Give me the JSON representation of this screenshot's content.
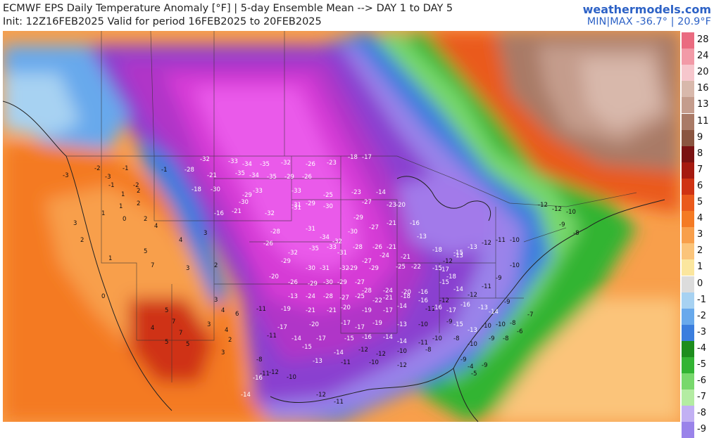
{
  "header": {
    "title": "ECMWF EPS Daily Temperature Anomaly [°F] | 5-day Ensemble Mean --> DAY 1 to DAY 5",
    "subtitle": "Init: 12Z16FEB2025 Valid for period 16FEB2025 to 20FEB2025",
    "brand": "weathermodels.com",
    "minmax": "MIN|MAX -36.7° | 20.9°F"
  },
  "scale": {
    "labels": [
      "28",
      "24",
      "20",
      "16",
      "13",
      "11",
      "9",
      "8",
      "7",
      "6",
      "5",
      "4",
      "3",
      "2",
      "1",
      "0",
      "-1",
      "-2",
      "-3",
      "-4",
      "-5",
      "-6",
      "-7",
      "-8",
      "-9"
    ],
    "colors": [
      "#ea6b80",
      "#f29aa7",
      "#f6c6cc",
      "#d8b8ab",
      "#c49c8c",
      "#a97a66",
      "#8a5540",
      "#7a1212",
      "#a51a10",
      "#cf3313",
      "#ea5a1c",
      "#f47a24",
      "#f89f4b",
      "#fbc47a",
      "#fbe69e",
      "#dcdcdc",
      "#a7d2f2",
      "#68a9ec",
      "#3b7ede",
      "#1d8d1d",
      "#33b433",
      "#78d86c",
      "#b4eca2",
      "#c2b0f3",
      "#9a83ea"
    ]
  },
  "map": {
    "anomaly_labels": [
      {
        "t": "-32",
        "c": "d"
      },
      {
        "t": "-33",
        "c": "d"
      },
      {
        "t": "-34",
        "c": "d"
      },
      {
        "t": "-35",
        "c": "d"
      },
      {
        "t": "-32",
        "c": "d"
      },
      {
        "t": "-26",
        "c": "d"
      },
      {
        "t": "-23",
        "c": "d"
      },
      {
        "t": "-18",
        "c": "d"
      },
      {
        "t": "-17",
        "c": "d"
      },
      {
        "t": "-28",
        "c": "d"
      },
      {
        "t": "-21",
        "c": "d"
      },
      {
        "t": "-35",
        "c": "d"
      },
      {
        "t": "-34",
        "c": "d"
      },
      {
        "t": "-35",
        "c": "d"
      },
      {
        "t": "-29",
        "c": "d"
      },
      {
        "t": "-26",
        "c": "d"
      },
      {
        "t": "-18",
        "c": "d"
      },
      {
        "t": "-30",
        "c": "d"
      },
      {
        "t": "-33",
        "c": "d"
      },
      {
        "t": "-30",
        "c": "d"
      },
      {
        "t": "-33",
        "c": "d"
      },
      {
        "t": "-29",
        "c": "d"
      },
      {
        "t": "-29",
        "c": "d"
      },
      {
        "t": "-31",
        "c": "d"
      },
      {
        "t": "-25",
        "c": "d"
      },
      {
        "t": "-23",
        "c": "d"
      },
      {
        "t": "-14",
        "c": "d"
      },
      {
        "t": "-27",
        "c": "d"
      },
      {
        "t": "-23",
        "c": "d"
      },
      {
        "t": "-20",
        "c": "d"
      },
      {
        "t": "-21",
        "c": "d"
      },
      {
        "t": "-16",
        "c": "d"
      },
      {
        "t": "-32",
        "c": "d"
      },
      {
        "t": "-31",
        "c": "d"
      },
      {
        "t": "-30",
        "c": "d"
      },
      {
        "t": "-29",
        "c": "d"
      },
      {
        "t": "-28",
        "c": "d"
      },
      {
        "t": "-31",
        "c": "d"
      },
      {
        "t": "-30",
        "c": "d"
      },
      {
        "t": "-27",
        "c": "d"
      },
      {
        "t": "-21",
        "c": "d"
      },
      {
        "t": "-16",
        "c": "d"
      },
      {
        "t": "-26",
        "c": "d"
      },
      {
        "t": "-32",
        "c": "d"
      },
      {
        "t": "-34",
        "c": "d"
      },
      {
        "t": "-32",
        "c": "d"
      },
      {
        "t": "-28",
        "c": "d"
      },
      {
        "t": "-26",
        "c": "d"
      },
      {
        "t": "-21",
        "c": "d"
      },
      {
        "t": "-13",
        "c": "d"
      },
      {
        "t": "-35",
        "c": "d"
      },
      {
        "t": "-33",
        "c": "d"
      },
      {
        "t": "-31",
        "c": "d"
      },
      {
        "t": "-29",
        "c": "d"
      },
      {
        "t": "-27",
        "c": "d"
      },
      {
        "t": "-24",
        "c": "d"
      },
      {
        "t": "-21",
        "c": "d"
      },
      {
        "t": "-18",
        "c": "d"
      },
      {
        "t": "-15",
        "c": "d"
      },
      {
        "t": "-29",
        "c": "d"
      },
      {
        "t": "-30",
        "c": "d"
      },
      {
        "t": "-31",
        "c": "d"
      },
      {
        "t": "-32",
        "c": "d"
      },
      {
        "t": "-29",
        "c": "d"
      },
      {
        "t": "-25",
        "c": "d"
      },
      {
        "t": "-22",
        "c": "d"
      },
      {
        "t": "-17",
        "c": "d"
      },
      {
        "t": "-20",
        "c": "d"
      },
      {
        "t": "-26",
        "c": "d"
      },
      {
        "t": "-29",
        "c": "d"
      },
      {
        "t": "-30",
        "c": "d"
      },
      {
        "t": "-29",
        "c": "d"
      },
      {
        "t": "-27",
        "c": "d"
      },
      {
        "t": "-28",
        "c": "d"
      },
      {
        "t": "-24",
        "c": "d"
      },
      {
        "t": "-20",
        "c": "d"
      },
      {
        "t": "-16",
        "c": "d"
      },
      {
        "t": "-13",
        "c": "d"
      },
      {
        "t": "-24",
        "c": "d"
      },
      {
        "t": "-28",
        "c": "d"
      },
      {
        "t": "-27",
        "c": "d"
      },
      {
        "t": "-25",
        "c": "d"
      },
      {
        "t": "-22",
        "c": "d"
      },
      {
        "t": "-21",
        "c": "d"
      },
      {
        "t": "-18",
        "c": "d"
      },
      {
        "t": "-16",
        "c": "d"
      },
      {
        "t": "-12",
        "c": "d"
      },
      {
        "t": "-11",
        "c": "d"
      },
      {
        "t": "-19",
        "c": "d"
      },
      {
        "t": "-21",
        "c": "d"
      },
      {
        "t": "-21",
        "c": "d"
      },
      {
        "t": "-20",
        "c": "d"
      },
      {
        "t": "-19",
        "c": "d"
      },
      {
        "t": "-17",
        "c": "d"
      },
      {
        "t": "-14",
        "c": "d"
      },
      {
        "t": "-11",
        "c": "d"
      },
      {
        "t": "-17",
        "c": "d"
      },
      {
        "t": "-20",
        "c": "d"
      },
      {
        "t": "-17",
        "c": "d"
      },
      {
        "t": "-17",
        "c": "d"
      },
      {
        "t": "-19",
        "c": "d"
      },
      {
        "t": "-13",
        "c": "d"
      },
      {
        "t": "-10",
        "c": "d"
      },
      {
        "t": "-9",
        "c": "d"
      },
      {
        "t": "-11",
        "c": "d"
      },
      {
        "t": "-14",
        "c": "d"
      },
      {
        "t": "-17",
        "c": "d"
      },
      {
        "t": "-15",
        "c": "d"
      },
      {
        "t": "-16",
        "c": "d"
      },
      {
        "t": "-14",
        "c": "d"
      },
      {
        "t": "-14",
        "c": "d"
      },
      {
        "t": "-11",
        "c": "d"
      },
      {
        "t": "-10",
        "c": "d"
      },
      {
        "t": "-8",
        "c": "d"
      },
      {
        "t": "-15",
        "c": "d"
      },
      {
        "t": "-14",
        "c": "d"
      },
      {
        "t": "-12",
        "c": "d"
      },
      {
        "t": "-12",
        "c": "d"
      },
      {
        "t": "-10",
        "c": "d"
      },
      {
        "t": "-8",
        "c": "d"
      },
      {
        "t": "-13",
        "c": "d"
      },
      {
        "t": "-11",
        "c": "d"
      },
      {
        "t": "-10",
        "c": "d"
      },
      {
        "t": "-12",
        "c": "d"
      },
      {
        "t": "-4",
        "c": "d"
      },
      {
        "t": "-15",
        "c": "d"
      },
      {
        "t": "-12",
        "c": "d"
      },
      {
        "t": "-13",
        "c": "d"
      },
      {
        "t": "-13",
        "c": "d"
      },
      {
        "t": "-12",
        "c": "d"
      },
      {
        "t": "-11",
        "c": "d"
      },
      {
        "t": "-10",
        "c": "d"
      },
      {
        "t": "-15",
        "c": "d"
      },
      {
        "t": "-18",
        "c": "d"
      },
      {
        "t": "-14",
        "c": "d"
      },
      {
        "t": "-12",
        "c": "d"
      },
      {
        "t": "-11",
        "c": "d"
      },
      {
        "t": "-9",
        "c": "d"
      },
      {
        "t": "-10",
        "c": "d"
      },
      {
        "t": "-16",
        "c": "d"
      },
      {
        "t": "-17",
        "c": "d"
      },
      {
        "t": "-16",
        "c": "d"
      },
      {
        "t": "-13",
        "c": "d"
      },
      {
        "t": "-14",
        "c": "d"
      },
      {
        "t": "-9",
        "c": "d"
      },
      {
        "t": "-15",
        "c": "d"
      },
      {
        "t": "-13",
        "c": "d"
      },
      {
        "t": "-10",
        "c": "d"
      },
      {
        "t": "-10",
        "c": "d"
      },
      {
        "t": "-8",
        "c": "d"
      },
      {
        "t": "-7",
        "c": "d"
      },
      {
        "t": "-10",
        "c": "d"
      },
      {
        "t": "-9",
        "c": "d"
      },
      {
        "t": "-8",
        "c": "d"
      },
      {
        "t": "-6",
        "c": "d"
      },
      {
        "t": "-12",
        "c": "d"
      },
      {
        "t": "-12",
        "c": "d"
      },
      {
        "t": "-10",
        "c": "d"
      },
      {
        "t": "-9",
        "c": "d"
      },
      {
        "t": "-8",
        "c": "d"
      },
      {
        "t": "-2",
        "c": "d"
      },
      {
        "t": "-3",
        "c": "d"
      },
      {
        "t": "-1",
        "c": "d"
      },
      {
        "t": "-1",
        "c": "d"
      },
      {
        "t": "-2",
        "c": "d"
      },
      {
        "t": "-3",
        "c": "d"
      },
      {
        "t": "-1",
        "c": "d"
      },
      {
        "t": "1",
        "c": "d"
      },
      {
        "t": "2",
        "c": "d"
      },
      {
        "t": "1",
        "c": "d"
      },
      {
        "t": "2",
        "c": "d"
      },
      {
        "t": "3",
        "c": "d"
      },
      {
        "t": "1",
        "c": "d"
      },
      {
        "t": "0",
        "c": "d"
      },
      {
        "t": "2",
        "c": "d"
      },
      {
        "t": "4",
        "c": "d"
      },
      {
        "t": "3",
        "c": "d"
      },
      {
        "t": "2",
        "c": "d"
      },
      {
        "t": "4",
        "c": "d"
      },
      {
        "t": "5",
        "c": "d"
      },
      {
        "t": "1",
        "c": "d"
      },
      {
        "t": "7",
        "c": "d"
      },
      {
        "t": "3",
        "c": "d"
      },
      {
        "t": "2",
        "c": "d"
      },
      {
        "t": "0",
        "c": "d"
      },
      {
        "t": "5",
        "c": "d"
      },
      {
        "t": "7",
        "c": "d"
      },
      {
        "t": "3",
        "c": "d"
      },
      {
        "t": "4",
        "c": "d"
      },
      {
        "t": "6",
        "c": "d"
      },
      {
        "t": "3",
        "c": "d"
      },
      {
        "t": "5",
        "c": "d"
      },
      {
        "t": "4",
        "c": "d"
      },
      {
        "t": "7",
        "c": "d"
      },
      {
        "t": "5",
        "c": "d"
      },
      {
        "t": "3",
        "c": "d"
      },
      {
        "t": "4",
        "c": "d"
      },
      {
        "t": "2",
        "c": "d"
      },
      {
        "t": "-14",
        "c": "d"
      },
      {
        "t": "-16",
        "c": "d"
      },
      {
        "t": "-12",
        "c": "d"
      },
      {
        "t": "-10",
        "c": "d"
      },
      {
        "t": "-12",
        "c": "d"
      },
      {
        "t": "-11",
        "c": "d"
      },
      {
        "t": "-8",
        "c": "d"
      },
      {
        "t": "-11",
        "c": "d"
      },
      {
        "t": "-9",
        "c": "d"
      },
      {
        "t": "-5",
        "c": "d"
      },
      {
        "t": "-9",
        "c": "d"
      }
    ]
  }
}
